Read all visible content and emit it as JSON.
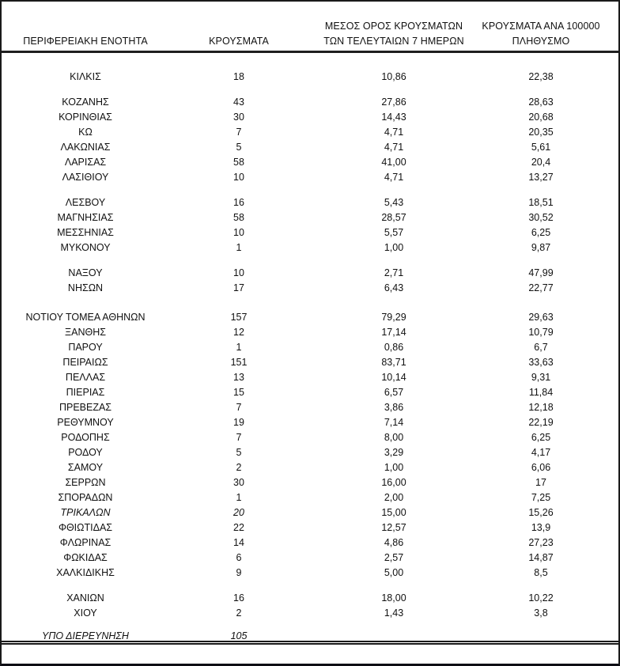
{
  "table": {
    "columns": [
      {
        "key": "name",
        "label": "ΠΕΡΙΦΕΡΕΙΑΚΗ ΕΝΟΤΗΤΑ"
      },
      {
        "key": "cases",
        "label": "ΚΡΟΥΣΜΑΤΑ"
      },
      {
        "key": "avg7",
        "label_line1": "ΜΕΣΟΣ ΟΡΟΣ ΚΡΟΥΣΜΑΤΩΝ",
        "label_line2": "ΤΩΝ ΤΕΛΕΥΤΑΙΩΝ 7 ΗΜΕΡΩΝ"
      },
      {
        "key": "per100k",
        "label_line1": "ΚΡΟΥΣΜΑΤΑ ΑΝΑ 100000",
        "label_line2": "ΠΛΗΘΥΣΜΟ"
      }
    ],
    "rows": [
      {
        "name": "ΚΙΛΚΙΣ",
        "cases": "18",
        "avg7": "10,86",
        "per100k": "22,38"
      },
      {
        "name": "ΚΟΖΑΝΗΣ",
        "cases": "43",
        "avg7": "27,86",
        "per100k": "28,63",
        "spacer_before": true
      },
      {
        "name": "ΚΟΡΙΝΘΙΑΣ",
        "cases": "30",
        "avg7": "14,43",
        "per100k": "20,68"
      },
      {
        "name": "ΚΩ",
        "cases": "7",
        "avg7": "4,71",
        "per100k": "20,35"
      },
      {
        "name": "ΛΑΚΩΝΙΑΣ",
        "cases": "5",
        "avg7": "4,71",
        "per100k": "5,61"
      },
      {
        "name": "ΛΑΡΙΣΑΣ",
        "cases": "58",
        "avg7": "41,00",
        "per100k": "20,4"
      },
      {
        "name": "ΛΑΣΙΘΙΟΥ",
        "cases": "10",
        "avg7": "4,71",
        "per100k": "13,27"
      },
      {
        "name": "ΛΕΣΒΟΥ",
        "cases": "16",
        "avg7": "5,43",
        "per100k": "18,51",
        "spacer_before": true
      },
      {
        "name": "ΜΑΓΝΗΣΙΑΣ",
        "cases": "58",
        "avg7": "28,57",
        "per100k": "30,52"
      },
      {
        "name": "ΜΕΣΣΗΝΙΑΣ",
        "cases": "10",
        "avg7": "5,57",
        "per100k": "6,25"
      },
      {
        "name": "ΜΥΚΟΝΟΥ",
        "cases": "1",
        "avg7": "1,00",
        "per100k": "9,87"
      },
      {
        "name": "ΝΑΞΟΥ",
        "cases": "10",
        "avg7": "2,71",
        "per100k": "47,99",
        "spacer_before": true
      },
      {
        "name": "ΝΗΣΩΝ",
        "cases": "17",
        "avg7": "6,43",
        "per100k": "22,77"
      },
      {
        "name": "ΝΟΤΙΟΥ ΤΟΜΕΑ ΑΘΗΝΩΝ",
        "cases": "157",
        "avg7": "79,29",
        "per100k": "29,63",
        "spacer_before": true,
        "big_spacer": true
      },
      {
        "name": "ΞΑΝΘΗΣ",
        "cases": "12",
        "avg7": "17,14",
        "per100k": "10,79"
      },
      {
        "name": "ΠΑΡΟΥ",
        "cases": "1",
        "avg7": "0,86",
        "per100k": "6,7"
      },
      {
        "name": "ΠΕΙΡΑΙΩΣ",
        "cases": "151",
        "avg7": "83,71",
        "per100k": "33,63"
      },
      {
        "name": "ΠΕΛΛΑΣ",
        "cases": "13",
        "avg7": "10,14",
        "per100k": "9,31"
      },
      {
        "name": "ΠΙΕΡΙΑΣ",
        "cases": "15",
        "avg7": "6,57",
        "per100k": "11,84"
      },
      {
        "name": "ΠΡΕΒΕΖΑΣ",
        "cases": "7",
        "avg7": "3,86",
        "per100k": "12,18"
      },
      {
        "name": "ΡΕΘΥΜΝΟΥ",
        "cases": "19",
        "avg7": "7,14",
        "per100k": "22,19"
      },
      {
        "name": "ΡΟΔΟΠΗΣ",
        "cases": "7",
        "avg7": "8,00",
        "per100k": "6,25"
      },
      {
        "name": "ΡΟΔΟΥ",
        "cases": "5",
        "avg7": "3,29",
        "per100k": "4,17"
      },
      {
        "name": "ΣΑΜΟΥ",
        "cases": "2",
        "avg7": "1,00",
        "per100k": "6,06"
      },
      {
        "name": "ΣΕΡΡΩΝ",
        "cases": "30",
        "avg7": "16,00",
        "per100k": "17"
      },
      {
        "name": "ΣΠΟΡΑΔΩΝ",
        "cases": "1",
        "avg7": "2,00",
        "per100k": "7,25"
      },
      {
        "name": "ΤΡΙΚΑΛΩΝ",
        "cases": "20",
        "avg7": "15,00",
        "per100k": "15,26",
        "italic": true
      },
      {
        "name": "ΦΘΙΩΤΙΔΑΣ",
        "cases": "22",
        "avg7": "12,57",
        "per100k": "13,9"
      },
      {
        "name": "ΦΛΩΡΙΝΑΣ",
        "cases": "14",
        "avg7": "4,86",
        "per100k": "27,23"
      },
      {
        "name": "ΦΩΚΙΔΑΣ",
        "cases": "6",
        "avg7": "2,57",
        "per100k": "14,87"
      },
      {
        "name": "ΧΑΛΚΙΔΙΚΗΣ",
        "cases": "9",
        "avg7": "5,00",
        "per100k": "8,5"
      },
      {
        "name": "ΧΑΝΙΩΝ",
        "cases": "16",
        "avg7": "18,00",
        "per100k": "10,22",
        "spacer_before": true
      },
      {
        "name": "ΧΙΟΥ",
        "cases": "2",
        "avg7": "1,43",
        "per100k": "3,8"
      },
      {
        "name": "ΥΠΟ ΔΙΕΡΕΥΝΗΣΗ",
        "cases": "105",
        "avg7": "",
        "per100k": "",
        "spacer_before": true,
        "italic": true,
        "double_underline": true
      }
    ]
  },
  "colors": {
    "background": "#ffffff",
    "text": "#111111",
    "border": "#1a1a1a"
  }
}
